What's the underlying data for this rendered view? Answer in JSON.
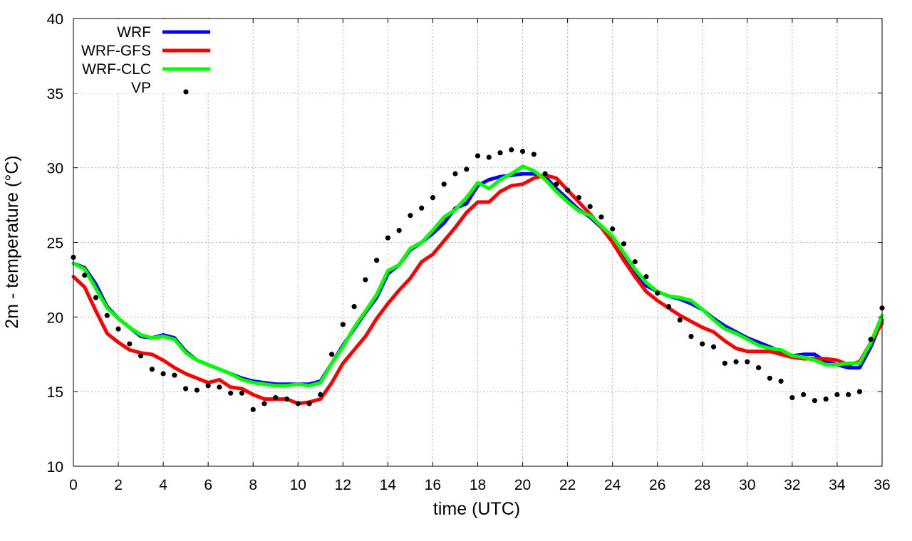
{
  "chart_data": {
    "type": "line",
    "title": "",
    "xlabel": "time (UTC)",
    "ylabel": "2m - temperature (°C)",
    "xlim": [
      0,
      36
    ],
    "ylim": [
      10,
      40
    ],
    "x_ticks": [
      0,
      2,
      4,
      6,
      8,
      10,
      12,
      14,
      16,
      18,
      20,
      22,
      24,
      26,
      28,
      30,
      32,
      34,
      36
    ],
    "y_ticks": [
      10,
      15,
      20,
      25,
      30,
      35,
      40
    ],
    "grid": true,
    "legend_position": "top-left",
    "series": [
      {
        "name": "WRF",
        "style": "line",
        "color": "#0000ff",
        "points": [
          [
            0,
            23.6
          ],
          [
            0.5,
            23.3
          ],
          [
            1,
            22.2
          ],
          [
            1.5,
            20.7
          ],
          [
            2,
            19.9
          ],
          [
            2.5,
            19.3
          ],
          [
            3,
            18.7
          ],
          [
            3.5,
            18.6
          ],
          [
            4,
            18.8
          ],
          [
            4.5,
            18.6
          ],
          [
            5,
            17.7
          ],
          [
            5.5,
            17.1
          ],
          [
            6,
            16.8
          ],
          [
            6.5,
            16.5
          ],
          [
            7,
            16.2
          ],
          [
            7.5,
            15.9
          ],
          [
            8,
            15.7
          ],
          [
            8.5,
            15.6
          ],
          [
            9,
            15.5
          ],
          [
            9.5,
            15.5
          ],
          [
            10,
            15.5
          ],
          [
            10.5,
            15.5
          ],
          [
            11,
            15.7
          ],
          [
            11.5,
            16.9
          ],
          [
            12,
            18.1
          ],
          [
            12.5,
            19.2
          ],
          [
            13,
            20.3
          ],
          [
            13.5,
            21.3
          ],
          [
            14,
            22.9
          ],
          [
            14.5,
            23.5
          ],
          [
            15,
            24.5
          ],
          [
            15.5,
            25.0
          ],
          [
            16,
            25.6
          ],
          [
            16.5,
            26.3
          ],
          [
            17,
            27.3
          ],
          [
            17.5,
            27.6
          ],
          [
            18,
            28.8
          ],
          [
            18.5,
            29.2
          ],
          [
            19,
            29.4
          ],
          [
            19.5,
            29.5
          ],
          [
            20,
            29.6
          ],
          [
            20.5,
            29.6
          ],
          [
            21,
            29.4
          ],
          [
            21.5,
            28.6
          ],
          [
            22,
            27.9
          ],
          [
            22.5,
            27.2
          ],
          [
            23,
            26.7
          ],
          [
            23.5,
            26.0
          ],
          [
            24,
            25.2
          ],
          [
            24.5,
            24.0
          ],
          [
            25,
            22.9
          ],
          [
            25.5,
            22.1
          ],
          [
            26,
            21.7
          ],
          [
            26.5,
            21.4
          ],
          [
            27,
            21.2
          ],
          [
            27.5,
            20.9
          ],
          [
            28,
            20.5
          ],
          [
            28.5,
            19.9
          ],
          [
            29,
            19.4
          ],
          [
            29.5,
            19.0
          ],
          [
            30,
            18.6
          ],
          [
            30.5,
            18.3
          ],
          [
            31,
            18.0
          ],
          [
            31.5,
            17.7
          ],
          [
            32,
            17.4
          ],
          [
            32.5,
            17.5
          ],
          [
            33,
            17.5
          ],
          [
            33.5,
            17.0
          ],
          [
            34,
            16.8
          ],
          [
            34.5,
            16.6
          ],
          [
            35,
            16.6
          ],
          [
            35.5,
            18.0
          ],
          [
            36,
            19.8
          ]
        ]
      },
      {
        "name": "WRF-GFS",
        "style": "line",
        "color": "#ff0000",
        "points": [
          [
            0,
            22.7
          ],
          [
            0.5,
            22.0
          ],
          [
            1,
            20.4
          ],
          [
            1.5,
            18.9
          ],
          [
            2,
            18.3
          ],
          [
            2.5,
            17.8
          ],
          [
            3,
            17.6
          ],
          [
            3.5,
            17.5
          ],
          [
            4,
            17.1
          ],
          [
            4.5,
            16.6
          ],
          [
            5,
            16.2
          ],
          [
            5.5,
            15.9
          ],
          [
            6,
            15.6
          ],
          [
            6.5,
            15.8
          ],
          [
            7,
            15.3
          ],
          [
            7.5,
            15.2
          ],
          [
            8,
            14.8
          ],
          [
            8.5,
            14.5
          ],
          [
            9,
            14.5
          ],
          [
            9.5,
            14.5
          ],
          [
            10,
            14.2
          ],
          [
            10.5,
            14.3
          ],
          [
            11,
            14.5
          ],
          [
            11.5,
            15.6
          ],
          [
            12,
            16.9
          ],
          [
            12.5,
            17.8
          ],
          [
            13,
            18.7
          ],
          [
            13.5,
            19.9
          ],
          [
            14,
            20.9
          ],
          [
            14.5,
            21.8
          ],
          [
            15,
            22.6
          ],
          [
            15.5,
            23.7
          ],
          [
            16,
            24.2
          ],
          [
            16.5,
            25.1
          ],
          [
            17,
            26.0
          ],
          [
            17.5,
            27.0
          ],
          [
            18,
            27.7
          ],
          [
            18.5,
            27.7
          ],
          [
            19,
            28.4
          ],
          [
            19.5,
            28.8
          ],
          [
            20,
            28.9
          ],
          [
            20.5,
            29.3
          ],
          [
            21,
            29.5
          ],
          [
            21.5,
            29.3
          ],
          [
            22,
            28.5
          ],
          [
            22.5,
            27.7
          ],
          [
            23,
            26.9
          ],
          [
            23.5,
            26.0
          ],
          [
            24,
            25.0
          ],
          [
            24.5,
            23.8
          ],
          [
            25,
            22.7
          ],
          [
            25.5,
            21.7
          ],
          [
            26,
            21.1
          ],
          [
            26.5,
            20.6
          ],
          [
            27,
            20.1
          ],
          [
            27.5,
            19.7
          ],
          [
            28,
            19.3
          ],
          [
            28.5,
            19.0
          ],
          [
            29,
            18.4
          ],
          [
            29.5,
            17.9
          ],
          [
            30,
            17.7
          ],
          [
            30.5,
            17.7
          ],
          [
            31,
            17.7
          ],
          [
            31.5,
            17.5
          ],
          [
            32,
            17.3
          ],
          [
            32.5,
            17.2
          ],
          [
            33,
            17.2
          ],
          [
            33.5,
            17.2
          ],
          [
            34,
            17.1
          ],
          [
            34.5,
            16.8
          ],
          [
            35,
            17.0
          ],
          [
            35.5,
            18.3
          ],
          [
            36,
            19.6
          ]
        ]
      },
      {
        "name": "WRF-CLC",
        "style": "line",
        "color": "#00ff00",
        "points": [
          [
            0,
            23.6
          ],
          [
            0.5,
            23.2
          ],
          [
            1,
            21.9
          ],
          [
            1.5,
            20.6
          ],
          [
            2,
            19.9
          ],
          [
            2.5,
            19.3
          ],
          [
            3,
            18.8
          ],
          [
            3.5,
            18.6
          ],
          [
            4,
            18.7
          ],
          [
            4.5,
            18.5
          ],
          [
            5,
            17.6
          ],
          [
            5.5,
            17.1
          ],
          [
            6,
            16.8
          ],
          [
            6.5,
            16.5
          ],
          [
            7,
            16.2
          ],
          [
            7.5,
            15.8
          ],
          [
            8,
            15.6
          ],
          [
            8.5,
            15.5
          ],
          [
            9,
            15.4
          ],
          [
            9.5,
            15.4
          ],
          [
            10,
            15.5
          ],
          [
            10.5,
            15.4
          ],
          [
            11,
            15.6
          ],
          [
            11.5,
            16.9
          ],
          [
            12,
            18.0
          ],
          [
            12.5,
            19.3
          ],
          [
            13,
            20.4
          ],
          [
            13.5,
            21.5
          ],
          [
            14,
            23.1
          ],
          [
            14.5,
            23.5
          ],
          [
            15,
            24.6
          ],
          [
            15.5,
            25.0
          ],
          [
            16,
            25.8
          ],
          [
            16.5,
            26.7
          ],
          [
            17,
            27.2
          ],
          [
            17.5,
            28.0
          ],
          [
            18,
            29.0
          ],
          [
            18.5,
            28.6
          ],
          [
            19,
            29.2
          ],
          [
            19.5,
            29.6
          ],
          [
            20,
            30.1
          ],
          [
            20.5,
            29.8
          ],
          [
            21,
            29.2
          ],
          [
            21.5,
            28.4
          ],
          [
            22,
            27.7
          ],
          [
            22.5,
            27.1
          ],
          [
            23,
            26.8
          ],
          [
            23.5,
            26.1
          ],
          [
            24,
            25.4
          ],
          [
            24.5,
            24.3
          ],
          [
            25,
            23.2
          ],
          [
            25.5,
            22.3
          ],
          [
            26,
            21.7
          ],
          [
            26.5,
            21.4
          ],
          [
            27,
            21.3
          ],
          [
            27.5,
            21.1
          ],
          [
            28,
            20.5
          ],
          [
            28.5,
            19.8
          ],
          [
            29,
            19.2
          ],
          [
            29.5,
            18.9
          ],
          [
            30,
            18.5
          ],
          [
            30.5,
            18.1
          ],
          [
            31,
            17.9
          ],
          [
            31.5,
            17.8
          ],
          [
            32,
            17.4
          ],
          [
            32.5,
            17.3
          ],
          [
            33,
            17.1
          ],
          [
            33.5,
            16.8
          ],
          [
            34,
            16.8
          ],
          [
            34.5,
            16.9
          ],
          [
            35,
            16.9
          ],
          [
            35.5,
            18.3
          ],
          [
            36,
            20.1
          ]
        ]
      },
      {
        "name": "VP",
        "style": "points",
        "color": "#000000",
        "points": [
          [
            0,
            24.0
          ],
          [
            0.5,
            22.8
          ],
          [
            1,
            21.3
          ],
          [
            1.5,
            20.1
          ],
          [
            2,
            19.2
          ],
          [
            2.5,
            18.2
          ],
          [
            3,
            17.4
          ],
          [
            3.5,
            16.5
          ],
          [
            4,
            16.2
          ],
          [
            4.5,
            16.1
          ],
          [
            5,
            15.2
          ],
          [
            5.5,
            15.1
          ],
          [
            6,
            15.4
          ],
          [
            6.5,
            15.3
          ],
          [
            7,
            14.9
          ],
          [
            7.5,
            14.9
          ],
          [
            8,
            13.8
          ],
          [
            8.5,
            14.2
          ],
          [
            9,
            14.6
          ],
          [
            9.5,
            14.5
          ],
          [
            10,
            14.2
          ],
          [
            10.5,
            14.2
          ],
          [
            11,
            14.8
          ],
          [
            11.5,
            17.5
          ],
          [
            12,
            19.5
          ],
          [
            12.5,
            20.7
          ],
          [
            13,
            22.5
          ],
          [
            13.5,
            23.8
          ],
          [
            14,
            25.3
          ],
          [
            14.5,
            25.8
          ],
          [
            15,
            26.8
          ],
          [
            15.5,
            27.3
          ],
          [
            16,
            28.0
          ],
          [
            16.5,
            28.9
          ],
          [
            17,
            29.6
          ],
          [
            17.5,
            29.9
          ],
          [
            18,
            30.8
          ],
          [
            18.5,
            30.7
          ],
          [
            19,
            31.0
          ],
          [
            19.5,
            31.2
          ],
          [
            20,
            31.1
          ],
          [
            20.5,
            30.9
          ],
          [
            21,
            29.6
          ],
          [
            21.5,
            28.9
          ],
          [
            22,
            28.5
          ],
          [
            22.5,
            28.0
          ],
          [
            23,
            27.4
          ],
          [
            23.5,
            26.7
          ],
          [
            24,
            25.9
          ],
          [
            24.5,
            24.9
          ],
          [
            25,
            23.7
          ],
          [
            25.5,
            22.7
          ],
          [
            26,
            21.6
          ],
          [
            26.5,
            20.7
          ],
          [
            27,
            19.8
          ],
          [
            27.5,
            18.7
          ],
          [
            28,
            18.2
          ],
          [
            28.5,
            18.0
          ],
          [
            29,
            16.9
          ],
          [
            29.5,
            17.0
          ],
          [
            30,
            17.0
          ],
          [
            30.5,
            16.6
          ],
          [
            31,
            15.9
          ],
          [
            31.5,
            15.7
          ],
          [
            32,
            14.6
          ],
          [
            32.5,
            14.8
          ],
          [
            33,
            14.4
          ],
          [
            33.5,
            14.5
          ],
          [
            34,
            14.8
          ],
          [
            34.5,
            14.8
          ],
          [
            35,
            15.0
          ],
          [
            35.5,
            18.5
          ],
          [
            36,
            20.6
          ]
        ]
      }
    ]
  }
}
